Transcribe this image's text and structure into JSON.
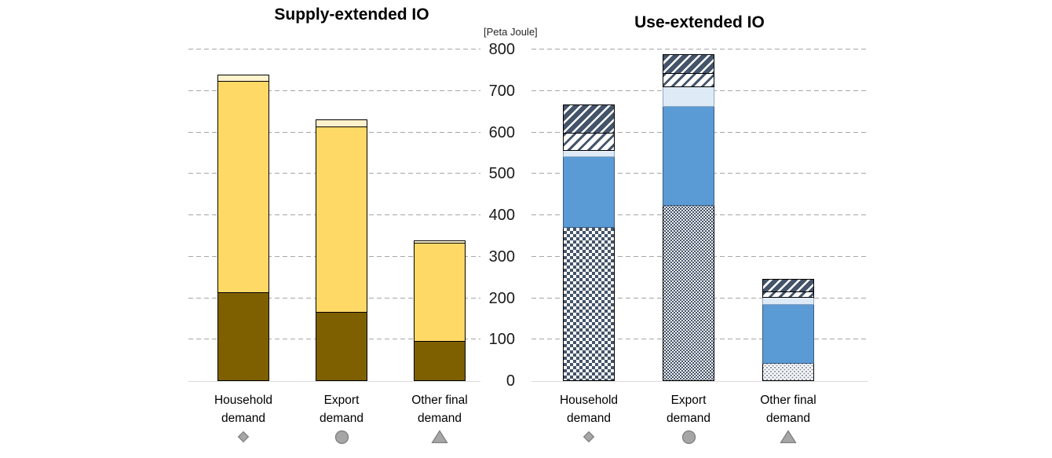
{
  "y_axis": {
    "unit": "[Peta Joule]",
    "ticks": [
      800,
      700,
      600,
      500,
      400,
      300,
      200,
      100,
      0
    ]
  },
  "chart_data": [
    {
      "type": "bar",
      "stacked": true,
      "title": "Supply-extended IO",
      "ylabel": "[Peta Joule]",
      "ylim": [
        0,
        800
      ],
      "grid": "dashed-horizontal",
      "legend": "none",
      "categories": [
        {
          "line1": "Household",
          "line2": "demand",
          "marker": "diamond"
        },
        {
          "line1": "Export",
          "line2": "demand",
          "marker": "circle"
        },
        {
          "line1": "Other final",
          "line2": "demand",
          "marker": "triangle"
        }
      ],
      "bars": [
        {
          "category": "Household demand",
          "total": 740,
          "segments": [
            {
              "pattern": "solid-brown",
              "value": 215
            },
            {
              "pattern": "solid-yellow",
              "value": 510
            },
            {
              "pattern": "solid-cream",
              "value": 15
            }
          ]
        },
        {
          "category": "Export demand",
          "total": 632,
          "segments": [
            {
              "pattern": "solid-brown",
              "value": 166
            },
            {
              "pattern": "solid-yellow",
              "value": 449
            },
            {
              "pattern": "solid-cream",
              "value": 17
            }
          ]
        },
        {
          "category": "Other final demand",
          "total": 340,
          "segments": [
            {
              "pattern": "solid-brown",
              "value": 97
            },
            {
              "pattern": "solid-yellow",
              "value": 236
            },
            {
              "pattern": "solid-cream",
              "value": 7
            }
          ]
        }
      ]
    },
    {
      "type": "bar",
      "stacked": true,
      "title": "Use-extended IO",
      "ylabel": "[Peta Joule]",
      "ylim": [
        0,
        800
      ],
      "grid": "dashed-horizontal",
      "legend": "none",
      "categories": [
        {
          "line1": "Household",
          "line2": "demand",
          "marker": "diamond"
        },
        {
          "line1": "Export",
          "line2": "demand",
          "marker": "circle"
        },
        {
          "line1": "Other final",
          "line2": "demand",
          "marker": "triangle"
        }
      ],
      "bars": [
        {
          "category": "Household demand",
          "total": 668,
          "segments": [
            {
              "pattern": "diamond-check",
              "value": 372
            },
            {
              "pattern": "solid-blue",
              "value": 170
            },
            {
              "pattern": "pale-blue",
              "value": 16
            },
            {
              "pattern": "light-diagonal",
              "value": 42
            },
            {
              "pattern": "dark-diagonal",
              "value": 68
            }
          ]
        },
        {
          "category": "Export demand",
          "total": 789,
          "segments": [
            {
              "pattern": "dot-navy",
              "value": 424
            },
            {
              "pattern": "solid-blue",
              "value": 239
            },
            {
              "pattern": "pale-blue",
              "value": 48
            },
            {
              "pattern": "light-diagonal",
              "value": 32
            },
            {
              "pattern": "dark-diagonal",
              "value": 46
            }
          ]
        },
        {
          "category": "Other final demand",
          "total": 246,
          "segments": [
            {
              "pattern": "dot-light",
              "value": 43
            },
            {
              "pattern": "solid-blue",
              "value": 143
            },
            {
              "pattern": "pale-blue",
              "value": 16
            },
            {
              "pattern": "light-diagonal",
              "value": 15
            },
            {
              "pattern": "dark-diagonal",
              "value": 29
            }
          ]
        }
      ]
    }
  ],
  "colors": {
    "yellow": "#FFD966",
    "cream": "#FFF2CC",
    "brown": "#7F6000",
    "blue": "#5B9BD5",
    "pale_blue": "#DEEBF7",
    "navy": "#44546A",
    "gridline": "#A6A6A6",
    "axis_line": "#D9D9D9",
    "marker_fill": "#A6A6A6",
    "marker_stroke": "#7F7F7F"
  }
}
